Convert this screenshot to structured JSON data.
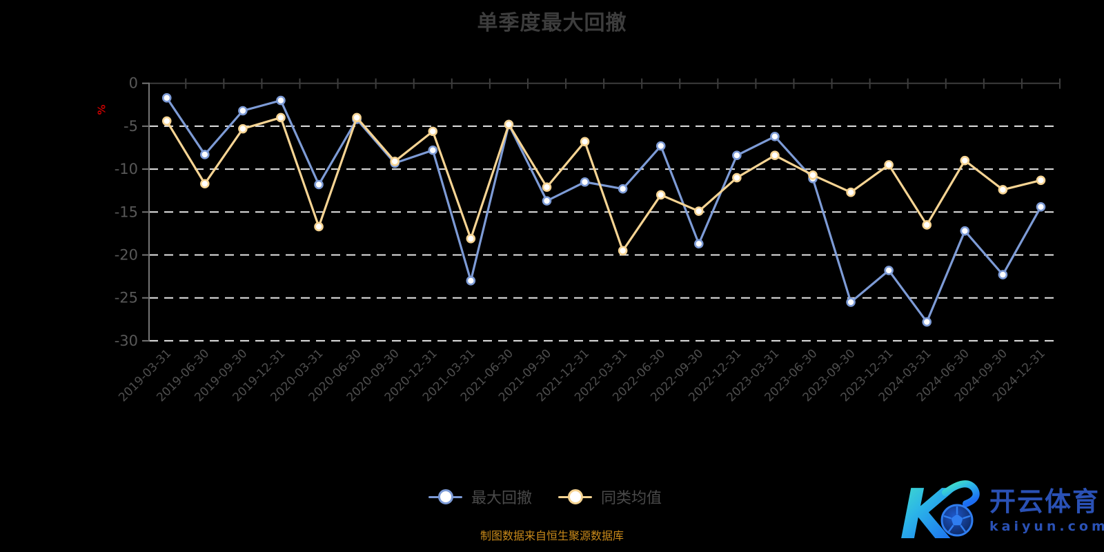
{
  "title": "单季度最大回撤",
  "y_axis": {
    "unit": "%",
    "min": -30,
    "max": 0,
    "tick_step": 5,
    "tick_labels": [
      "0",
      "-5",
      "-10",
      "-15",
      "-20",
      "-25",
      "-30"
    ]
  },
  "legend": {
    "items": [
      "最大回撤",
      "同类均值"
    ]
  },
  "footer": {
    "source_note": "制图数据来自恒生聚源数据库"
  },
  "watermark": {
    "logo_letter": "K",
    "brand": "开云体育",
    "domain": "kaiyun.com"
  },
  "colors": {
    "background": "#000000",
    "title_text": "#3d3d3d",
    "grid_dashed": "#e6e6e6",
    "zero_axis": "#3d3d3d",
    "y_axis_line": "#757575",
    "y_tick_text": "#585858",
    "x_tick_text": "#4e4e4e",
    "unit_label": "#c80000",
    "legend_text": "#4a4a4a",
    "footer_text": "#c8891a",
    "watermark_blue": "#2a51b5",
    "series_drawdown": "#7d9bd6",
    "series_average": "#f6d493",
    "marker_fill": "#ffffff"
  },
  "chart_data": {
    "type": "line",
    "title": "单季度最大回撤",
    "ylabel": "%",
    "ylim": [
      -30,
      0
    ],
    "y_ticks": [
      0,
      -5,
      -10,
      -15,
      -20,
      -25,
      -30
    ],
    "grid": "horizontal-dashed-white",
    "legend_position": "bottom",
    "marker": "circle-white-fill",
    "categories": [
      "2019-03-31",
      "2019-06-30",
      "2019-09-30",
      "2019-12-31",
      "2020-03-31",
      "2020-06-30",
      "2020-09-30",
      "2020-12-31",
      "2021-03-31",
      "2021-06-30",
      "2021-09-30",
      "2021-12-31",
      "2022-03-31",
      "2022-06-30",
      "2022-09-30",
      "2022-12-31",
      "2023-03-31",
      "2023-06-30",
      "2023-09-30",
      "2023-12-31",
      "2024-03-31",
      "2024-06-30",
      "2024-09-30",
      "2024-12-31"
    ],
    "series": [
      {
        "name": "最大回撤",
        "color": "#7d9bd6",
        "values": [
          -1.7,
          -8.3,
          -3.2,
          -2.0,
          -11.8,
          -4.2,
          -9.3,
          -7.8,
          -23.0,
          -4.8,
          -13.7,
          -11.5,
          -12.3,
          -7.3,
          -18.7,
          -8.4,
          -6.2,
          -11.1,
          -25.5,
          -21.8,
          -27.8,
          -17.2,
          -22.3,
          -14.4
        ]
      },
      {
        "name": "同类均值",
        "color": "#f6d493",
        "values": [
          -4.4,
          -11.7,
          -5.3,
          -4.0,
          -16.7,
          -4.0,
          -9.1,
          -5.6,
          -18.1,
          -4.8,
          -12.1,
          -6.8,
          -19.5,
          -13.0,
          -14.9,
          -11.0,
          -8.4,
          -10.7,
          -12.7,
          -9.5,
          -16.5,
          -9.0,
          -12.4,
          -11.3
        ]
      }
    ]
  }
}
